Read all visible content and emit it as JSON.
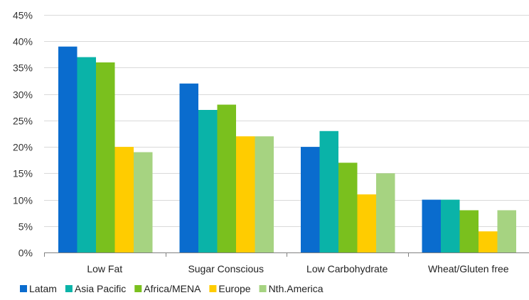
{
  "chart_data": {
    "type": "bar",
    "categories": [
      "Low Fat",
      "Sugar Conscious",
      "Low Carbohydrate",
      "Wheat/Gluten free"
    ],
    "series": [
      {
        "name": "Latam",
        "color": "#0a6cce",
        "values": [
          39,
          32,
          20,
          10
        ]
      },
      {
        "name": "Asia Pacific",
        "color": "#0ab3a8",
        "values": [
          37,
          27,
          23,
          10
        ]
      },
      {
        "name": "Africa/MENA",
        "color": "#7ac01e",
        "values": [
          36,
          28,
          17,
          8
        ]
      },
      {
        "name": "Europe",
        "color": "#ffcc00",
        "values": [
          20,
          22,
          11,
          4
        ]
      },
      {
        "name": "Nth.America",
        "color": "#a6d381",
        "values": [
          19,
          22,
          15,
          8
        ]
      }
    ],
    "ylim": [
      0,
      45
    ],
    "yticks": [
      0,
      5,
      10,
      15,
      20,
      25,
      30,
      35,
      40,
      45
    ],
    "ytick_suffix": "%",
    "grid": "horizontal",
    "legend_position": "bottom-left"
  }
}
